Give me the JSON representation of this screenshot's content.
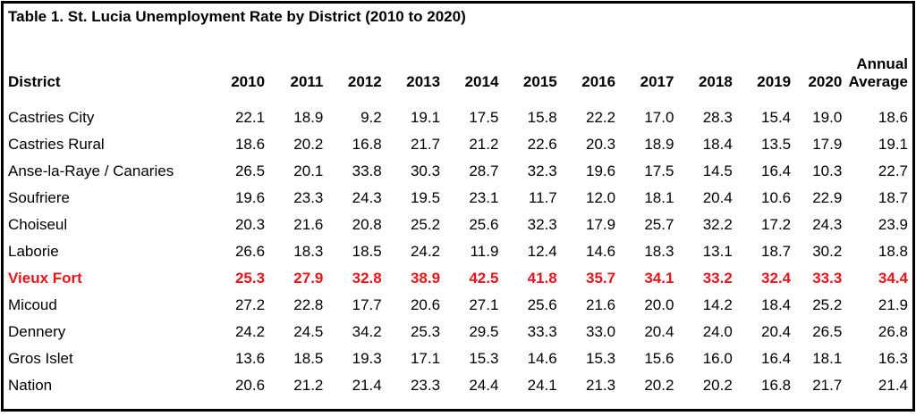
{
  "title": "Table 1. St. Lucia Unemployment Rate by District (2010 to 2020)",
  "headers": {
    "district": "District",
    "years": [
      "2010",
      "2011",
      "2012",
      "2013",
      "2014",
      "2015",
      "2016",
      "2017",
      "2018",
      "2019",
      "2020"
    ],
    "avg_line1": "Annual",
    "avg_line2": "Average"
  },
  "highlight_color": "#e8141b",
  "rows": [
    {
      "district": "Castries City",
      "values": [
        "22.1",
        "18.9",
        "9.2",
        "19.1",
        "17.5",
        "15.8",
        "22.2",
        "17.0",
        "28.3",
        "15.4",
        "19.0"
      ],
      "avg": "18.6"
    },
    {
      "district": "Castries Rural",
      "values": [
        "18.6",
        "20.2",
        "16.8",
        "21.7",
        "21.2",
        "22.6",
        "20.3",
        "18.9",
        "18.4",
        "13.5",
        "17.9"
      ],
      "avg": "19.1"
    },
    {
      "district": "Anse-la-Raye / Canaries",
      "values": [
        "26.5",
        "20.1",
        "33.8",
        "30.3",
        "28.7",
        "32.3",
        "19.6",
        "17.5",
        "14.5",
        "16.4",
        "10.3"
      ],
      "avg": "22.7"
    },
    {
      "district": "Soufriere",
      "values": [
        "19.6",
        "23.3",
        "24.3",
        "19.5",
        "23.1",
        "11.7",
        "12.0",
        "18.1",
        "20.4",
        "10.6",
        "22.9"
      ],
      "avg": "18.7"
    },
    {
      "district": "Choiseul",
      "values": [
        "20.3",
        "21.6",
        "20.8",
        "25.2",
        "25.6",
        "32.3",
        "17.9",
        "25.7",
        "32.2",
        "17.2",
        "24.3"
      ],
      "avg": "23.9"
    },
    {
      "district": "Laborie",
      "values": [
        "26.6",
        "18.3",
        "18.5",
        "24.2",
        "11.9",
        "12.4",
        "14.6",
        "18.3",
        "13.1",
        "18.7",
        "30.2"
      ],
      "avg": "18.8"
    },
    {
      "district": "Vieux Fort",
      "values": [
        "25.3",
        "27.9",
        "32.8",
        "38.9",
        "42.5",
        "41.8",
        "35.7",
        "34.1",
        "33.2",
        "32.4",
        "33.3"
      ],
      "avg": "34.4",
      "highlight": true
    },
    {
      "district": "Micoud",
      "values": [
        "27.2",
        "22.8",
        "17.7",
        "20.6",
        "27.1",
        "25.6",
        "21.6",
        "20.0",
        "14.2",
        "18.4",
        "25.2"
      ],
      "avg": "21.9"
    },
    {
      "district": "Dennery",
      "values": [
        "24.2",
        "24.5",
        "34.2",
        "25.3",
        "29.5",
        "33.3",
        "33.0",
        "20.4",
        "24.0",
        "20.4",
        "26.5"
      ],
      "avg": "26.8"
    },
    {
      "district": "Gros Islet",
      "values": [
        "13.6",
        "18.5",
        "19.3",
        "17.1",
        "15.3",
        "14.6",
        "15.3",
        "15.6",
        "16.0",
        "16.4",
        "18.1"
      ],
      "avg": "16.3"
    },
    {
      "district": "Nation",
      "values": [
        "20.6",
        "21.2",
        "21.4",
        "23.3",
        "24.4",
        "24.1",
        "21.3",
        "20.2",
        "20.2",
        "16.8",
        "21.7"
      ],
      "avg": "21.4"
    }
  ]
}
